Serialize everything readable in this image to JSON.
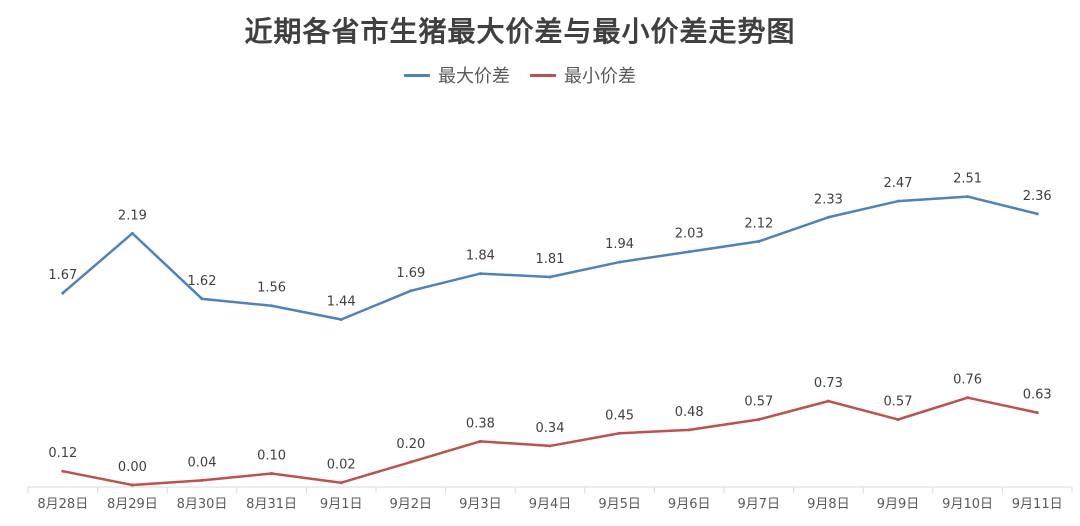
{
  "chart_data": {
    "type": "line",
    "title": "近期各省市生猪最大价差与最小价差走势图",
    "categories": [
      "8月28日",
      "8月29日",
      "8月30日",
      "8月31日",
      "9月1日",
      "9月2日",
      "9月3日",
      "9月4日",
      "9月5日",
      "9月6日",
      "9月7日",
      "9月8日",
      "9月9日",
      "9月10日",
      "9月11日"
    ],
    "series": [
      {
        "name": "最大价差",
        "color": "#4f81bd",
        "values": [
          1.67,
          2.19,
          1.62,
          1.56,
          1.44,
          1.69,
          1.84,
          1.81,
          1.94,
          2.03,
          2.12,
          2.33,
          2.47,
          2.51,
          2.36
        ],
        "labels": [
          "1.67",
          "2.19",
          "1.62",
          "1.56",
          "1.44",
          "1.69",
          "1.84",
          "1.81",
          "1.94",
          "2.03",
          "2.12",
          "2.33",
          "2.47",
          "2.51",
          "2.36"
        ]
      },
      {
        "name": "最小价差",
        "color": "#c0504d",
        "values": [
          0.12,
          0.0,
          0.04,
          0.1,
          0.02,
          0.2,
          0.38,
          0.34,
          0.45,
          0.48,
          0.57,
          0.73,
          0.57,
          0.76,
          0.63
        ],
        "labels": [
          "0.12",
          "0.00",
          "0.04",
          "0.10",
          "0.02",
          "0.20",
          "0.38",
          "0.34",
          "0.45",
          "0.48",
          "0.57",
          "0.73",
          "0.57",
          "0.76",
          "0.63"
        ]
      }
    ],
    "ylim": [
      0,
      2.75
    ],
    "grid": false,
    "legend_position": "top-center"
  }
}
